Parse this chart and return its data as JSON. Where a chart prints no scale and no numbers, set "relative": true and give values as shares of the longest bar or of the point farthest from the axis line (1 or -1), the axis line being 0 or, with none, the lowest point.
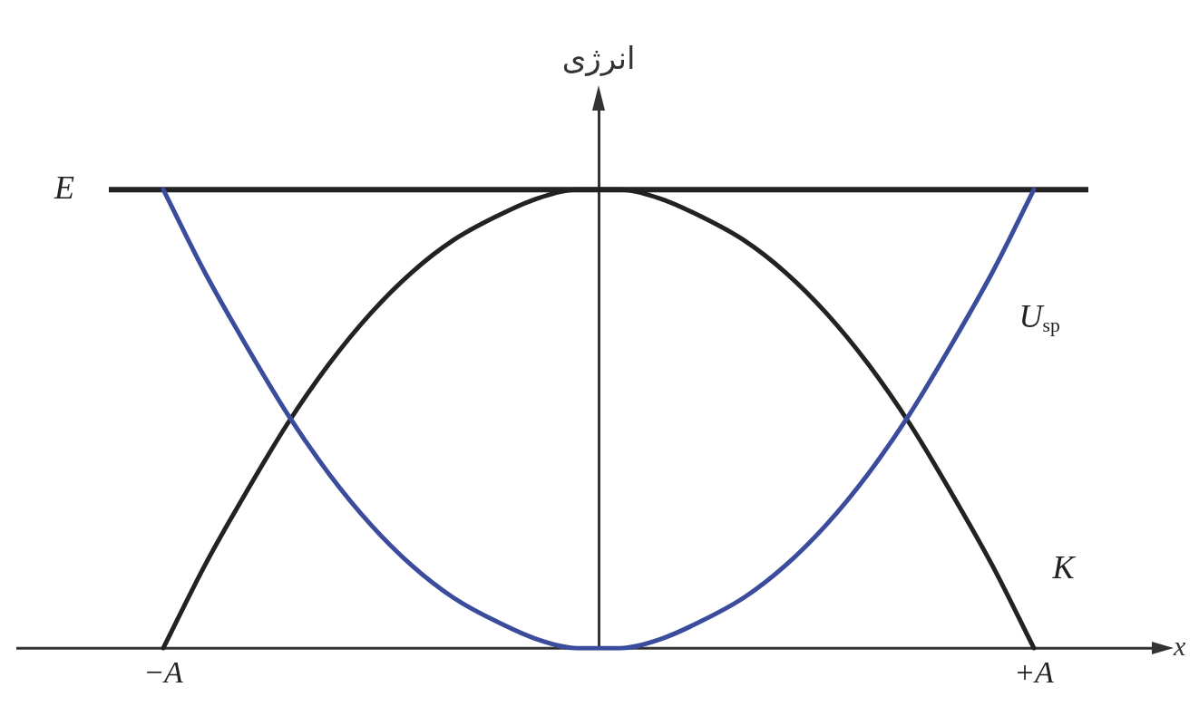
{
  "chart_data": {
    "type": "line",
    "relative": true,
    "ylabel": "انرژی",
    "xlabel": "x",
    "categories": [
      "−A",
      null,
      null,
      null,
      null,
      null,
      null,
      null,
      null,
      null,
      null,
      null,
      null,
      null,
      null,
      null,
      null,
      null,
      null,
      null,
      null,
      "+A"
    ],
    "series": [
      {
        "name": "U$_{sp}$",
        "color": "#3b4c9c",
        "values": [
          1,
          0.82,
          0.66,
          0.51,
          0.38,
          0.27,
          0.18,
          0.11,
          0.06,
          0.02,
          0,
          0,
          0.02,
          0.06,
          0.11,
          0.18,
          0.27,
          0.38,
          0.51,
          0.66,
          0.82,
          1
        ]
      },
      {
        "name": "K",
        "color": "#222222",
        "values": [
          0,
          0.18,
          0.34,
          0.49,
          0.62,
          0.73,
          0.82,
          0.89,
          0.94,
          0.98,
          1,
          1,
          0.98,
          0.94,
          0.89,
          0.82,
          0.73,
          0.62,
          0.49,
          0.34,
          0.18,
          0
        ]
      }
    ],
    "ref_lines": [
      {
        "axis": "y",
        "value": 1,
        "label": "E",
        "color": "#222222"
      }
    ],
    "grid": false,
    "legend": false,
    "marker": "none",
    "line_style": "solid"
  }
}
